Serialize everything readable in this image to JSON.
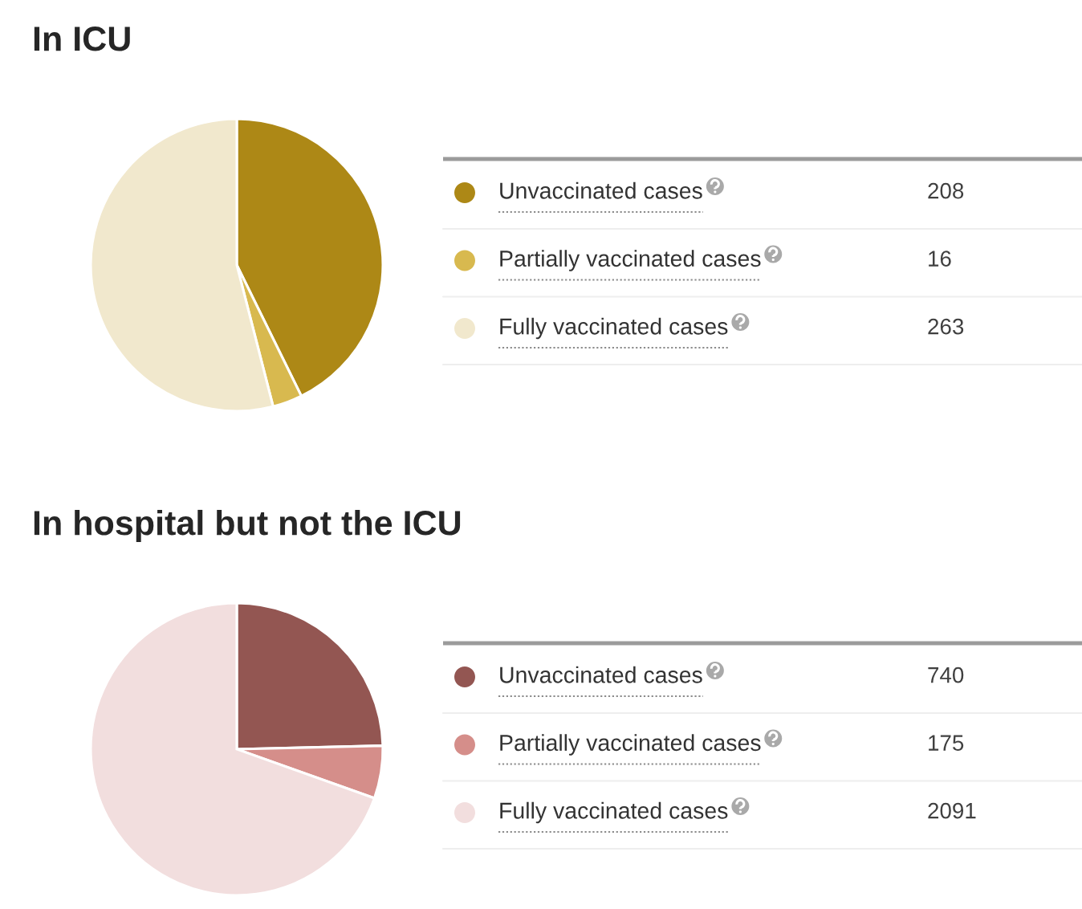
{
  "chart_data": [
    {
      "type": "pie",
      "title": "In ICU",
      "categories": [
        "Unvaccinated cases",
        "Partially vaccinated cases",
        "Fully vaccinated cases"
      ],
      "values": [
        208,
        16,
        263
      ],
      "colors": [
        "#ad8816",
        "#d8b94f",
        "#f1e8cd"
      ],
      "legend": "right",
      "data_labels": true
    },
    {
      "type": "pie",
      "title": "In hospital but not the ICU",
      "categories": [
        "Unvaccinated cases",
        "Partially vaccinated cases",
        "Fully vaccinated cases"
      ],
      "values": [
        740,
        175,
        2091
      ],
      "colors": [
        "#935652",
        "#d58e8a",
        "#f2dede"
      ],
      "legend": "right",
      "data_labels": true
    }
  ]
}
